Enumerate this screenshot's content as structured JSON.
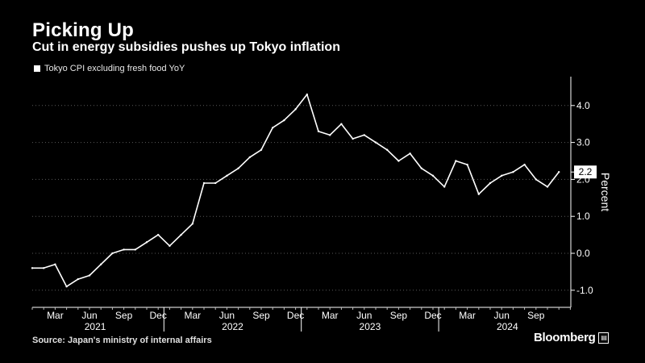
{
  "header": {
    "title": "Picking Up",
    "subtitle": "Cut in energy subsidies pushes up Tokyo inflation"
  },
  "footer": {
    "source": "Source: Japan's ministry of internal affairs",
    "brand": "Bloomberg"
  },
  "colors": {
    "background": "#000000",
    "line": "#ffffff",
    "grid": "#5a5a5a"
  },
  "chart_data": {
    "type": "line",
    "title": "Picking Up",
    "subtitle": "Cut in energy subsidies pushes up Tokyo inflation",
    "ylabel": "Percent",
    "xlabel": "",
    "ylim": [
      -1.5,
      4.8
    ],
    "yticks": [
      -1.0,
      0.0,
      1.0,
      2.0,
      3.0,
      4.0
    ],
    "ytick_labels": [
      "-1.0",
      "0.0",
      "1.0",
      "2.0",
      "3.0",
      "4.0"
    ],
    "xticks": [
      {
        "label": "Mar",
        "index": 2
      },
      {
        "label": "Jun",
        "index": 5
      },
      {
        "label": "Sep",
        "index": 8
      },
      {
        "label": "Dec",
        "index": 11
      },
      {
        "label": "Mar",
        "index": 14
      },
      {
        "label": "Jun",
        "index": 17
      },
      {
        "label": "Sep",
        "index": 20
      },
      {
        "label": "Dec",
        "index": 23
      },
      {
        "label": "Mar",
        "index": 26
      },
      {
        "label": "Jun",
        "index": 29
      },
      {
        "label": "Sep",
        "index": 32
      },
      {
        "label": "Dec",
        "index": 35
      },
      {
        "label": "Mar",
        "index": 38
      },
      {
        "label": "Jun",
        "index": 41
      },
      {
        "label": "Sep",
        "index": 44
      }
    ],
    "year_labels": [
      {
        "label": "2021",
        "start": 0,
        "end": 11
      },
      {
        "label": "2022",
        "start": 12,
        "end": 23
      },
      {
        "label": "2023",
        "start": 24,
        "end": 35
      },
      {
        "label": "2024",
        "start": 36,
        "end": 47
      }
    ],
    "grid": true,
    "legend_position": "top-left",
    "last_value_label": "2.2",
    "x": [
      "2021-01",
      "2021-02",
      "2021-03",
      "2021-04",
      "2021-05",
      "2021-06",
      "2021-07",
      "2021-08",
      "2021-09",
      "2021-10",
      "2021-11",
      "2021-12",
      "2022-01",
      "2022-02",
      "2022-03",
      "2022-04",
      "2022-05",
      "2022-06",
      "2022-07",
      "2022-08",
      "2022-09",
      "2022-10",
      "2022-11",
      "2022-12",
      "2023-01",
      "2023-02",
      "2023-03",
      "2023-04",
      "2023-05",
      "2023-06",
      "2023-07",
      "2023-08",
      "2023-09",
      "2023-10",
      "2023-11",
      "2023-12",
      "2024-01",
      "2024-02",
      "2024-03",
      "2024-04",
      "2024-05",
      "2024-06",
      "2024-07",
      "2024-08",
      "2024-09",
      "2024-10",
      "2024-11"
    ],
    "series": [
      {
        "name": "Tokyo CPI excluding fresh food YoY",
        "values": [
          -0.4,
          -0.4,
          -0.3,
          -0.9,
          -0.7,
          -0.6,
          -0.3,
          0.0,
          0.1,
          0.1,
          0.3,
          0.5,
          0.2,
          0.5,
          0.8,
          1.9,
          1.9,
          2.1,
          2.3,
          2.6,
          2.8,
          3.4,
          3.6,
          3.9,
          4.3,
          3.3,
          3.2,
          3.5,
          3.1,
          3.2,
          3.0,
          2.8,
          2.5,
          2.7,
          2.3,
          2.1,
          1.8,
          2.5,
          2.4,
          1.6,
          1.9,
          2.1,
          2.2,
          2.4,
          2.0,
          1.8,
          2.2
        ]
      }
    ]
  }
}
